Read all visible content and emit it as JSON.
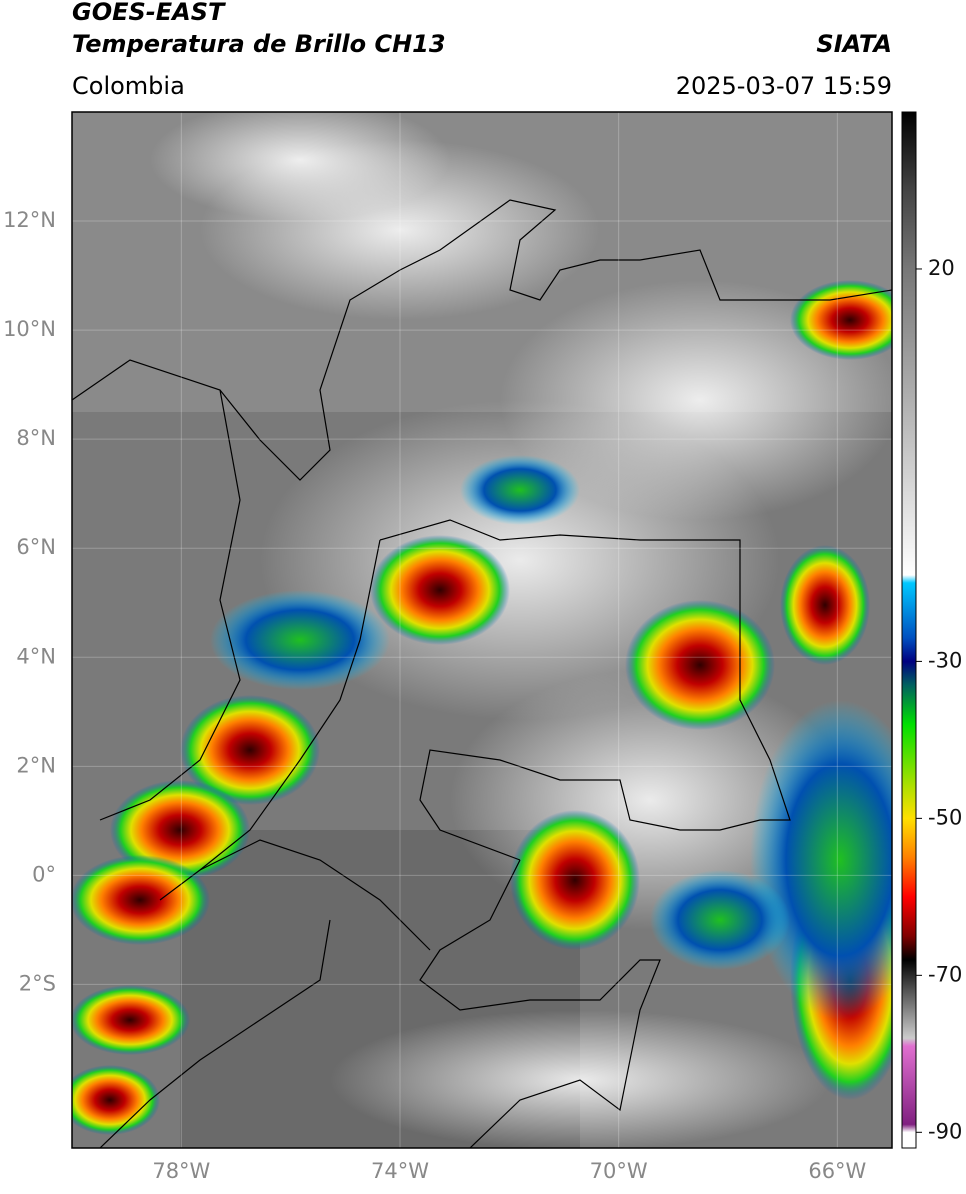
{
  "chart_data": {
    "type": "map",
    "title": "GOES-EAST",
    "subtitle": "Temperatura de Brillo CH13",
    "source": "SIATA",
    "region": "Colombia",
    "datetime": "2025-03-07 15:59",
    "xlim": [
      -80,
      -65
    ],
    "ylim": [
      -5,
      14
    ],
    "xticks": [
      {
        "value": -78,
        "label": "78°W"
      },
      {
        "value": -74,
        "label": "74°W"
      },
      {
        "value": -70,
        "label": "70°W"
      },
      {
        "value": -66,
        "label": "66°W"
      }
    ],
    "yticks": [
      {
        "value": 12,
        "label": "12°N"
      },
      {
        "value": 10,
        "label": "10°N"
      },
      {
        "value": 8,
        "label": "8°N"
      },
      {
        "value": 6,
        "label": "6°N"
      },
      {
        "value": 4,
        "label": "4°N"
      },
      {
        "value": 2,
        "label": "2°N"
      },
      {
        "value": 0,
        "label": "0°"
      },
      {
        "value": -2,
        "label": "2°S"
      }
    ],
    "grid": true,
    "colorbar": {
      "clim": [
        -92,
        40
      ],
      "ticks": [
        20,
        -30,
        -50,
        -70,
        -90
      ],
      "colormap": [
        {
          "value": 40,
          "color": "#000000"
        },
        {
          "value": 30,
          "color": "#444444"
        },
        {
          "value": 20,
          "color": "#777777"
        },
        {
          "value": 0,
          "color": "#bbbbbb"
        },
        {
          "value": -19,
          "color": "#ffffff"
        },
        {
          "value": -20,
          "color": "#00c8ff"
        },
        {
          "value": -27,
          "color": "#0050c0"
        },
        {
          "value": -30,
          "color": "#000080"
        },
        {
          "value": -33,
          "color": "#006060"
        },
        {
          "value": -38,
          "color": "#00e000"
        },
        {
          "value": -46,
          "color": "#b0e000"
        },
        {
          "value": -50,
          "color": "#ffe000"
        },
        {
          "value": -55,
          "color": "#ff8000"
        },
        {
          "value": -60,
          "color": "#ff0000"
        },
        {
          "value": -65,
          "color": "#800000"
        },
        {
          "value": -68,
          "color": "#000000"
        },
        {
          "value": -72,
          "color": "#555555"
        },
        {
          "value": -78,
          "color": "#cccccc"
        },
        {
          "value": -79,
          "color": "#e070d0"
        },
        {
          "value": -89,
          "color": "#802080"
        },
        {
          "value": -90,
          "color": "#ffffff"
        }
      ]
    }
  }
}
